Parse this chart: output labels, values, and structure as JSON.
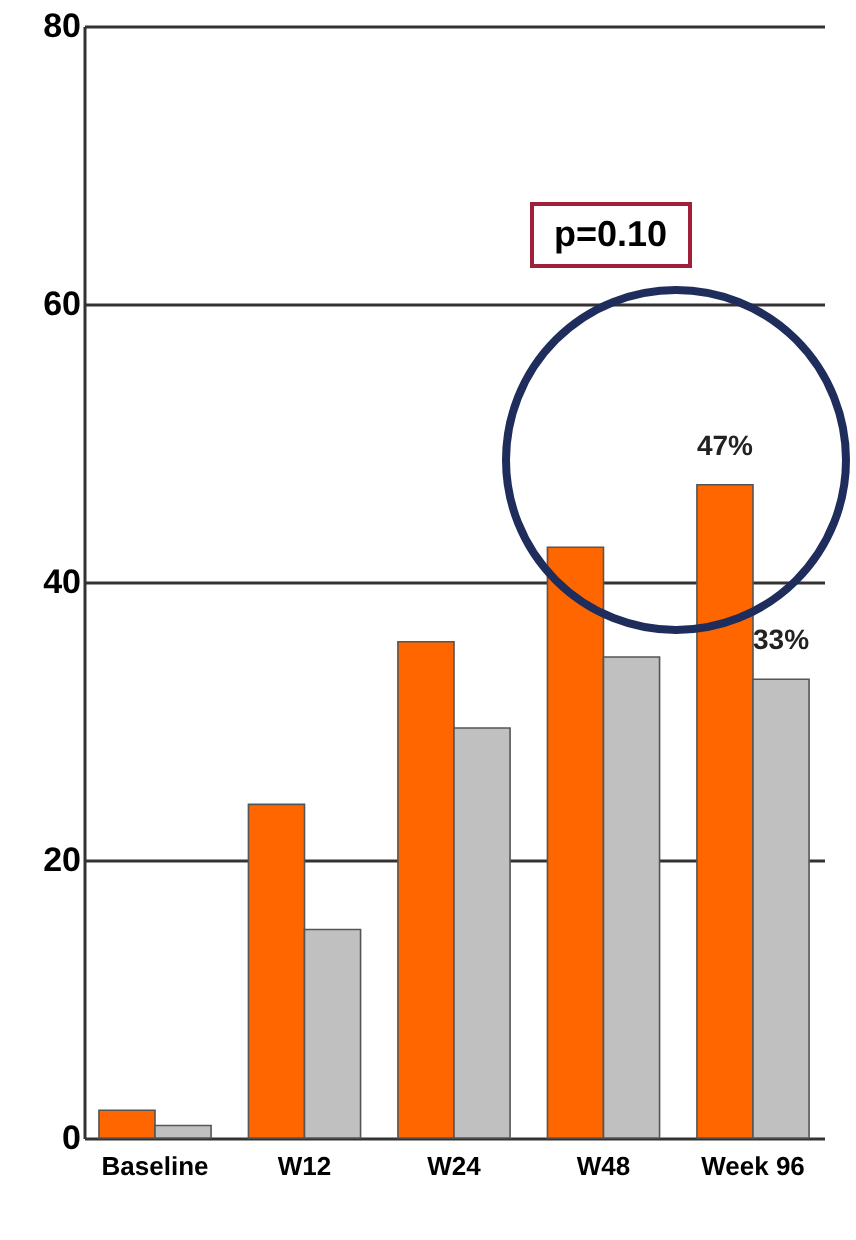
{
  "chart_data": {
    "type": "bar",
    "categories": [
      "Baseline",
      "W12",
      "W24",
      "W48",
      "Week 96"
    ],
    "series": [
      {
        "color": "#ff6600",
        "values": [
          2,
          24,
          35.7,
          42.5,
          47
        ],
        "value_labels": [
          null,
          null,
          null,
          null,
          "47%"
        ]
      },
      {
        "color": "#c0c0c0",
        "values": [
          0.9,
          15,
          29.5,
          34.6,
          33
        ],
        "value_labels": [
          null,
          null,
          null,
          null,
          "33%"
        ]
      }
    ],
    "ylim": [
      0,
      80
    ],
    "yticks": [
      0,
      20,
      40,
      60,
      80
    ],
    "grid": "y",
    "legend": false,
    "annotations": [
      "p=0.10"
    ]
  }
}
